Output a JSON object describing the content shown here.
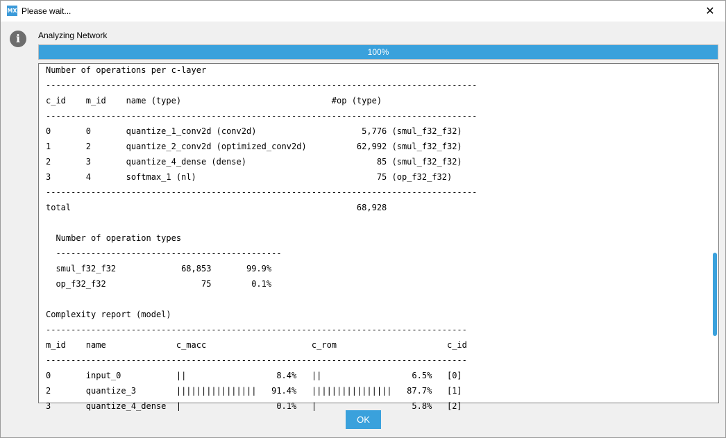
{
  "window": {
    "app_icon_text": "MX",
    "title": "Please wait...",
    "close_glyph": "✕"
  },
  "status": {
    "icon": "info-icon",
    "label": "Analyzing Network"
  },
  "progress": {
    "percent": 100,
    "label": "100%"
  },
  "report": {
    "lines": [
      "Number of operations per c-layer",
      "--------------------------------------------------------------------------------------",
      "c_id    m_id    name (type)                              #op (type)",
      "--------------------------------------------------------------------------------------",
      "0       0       quantize_1_conv2d (conv2d)                     5,776 (smul_f32_f32)",
      "1       2       quantize_2_conv2d (optimized_conv2d)          62,992 (smul_f32_f32)",
      "2       3       quantize_4_dense (dense)                          85 (smul_f32_f32)",
      "3       4       softmax_1 (nl)                                    75 (op_f32_f32)",
      "--------------------------------------------------------------------------------------",
      "total                                                         68,928",
      "",
      "  Number of operation types",
      "  ---------------------------------------------",
      "  smul_f32_f32             68,853       99.9%",
      "  op_f32_f32                   75        0.1%",
      "",
      "Complexity report (model)",
      "------------------------------------------------------------------------------------",
      "m_id    name              c_macc                     c_rom                      c_id",
      "------------------------------------------------------------------------------------",
      "0       input_0           ||                  8.4%   ||                  6.5%   [0]",
      "2       quantize_3        ||||||||||||||||   91.4%   ||||||||||||||||   87.7%   [1]",
      "3       quantize_4_dense  |                   0.1%   |                   5.8%   [2]"
    ]
  },
  "footer": {
    "ok_label": "OK"
  }
}
